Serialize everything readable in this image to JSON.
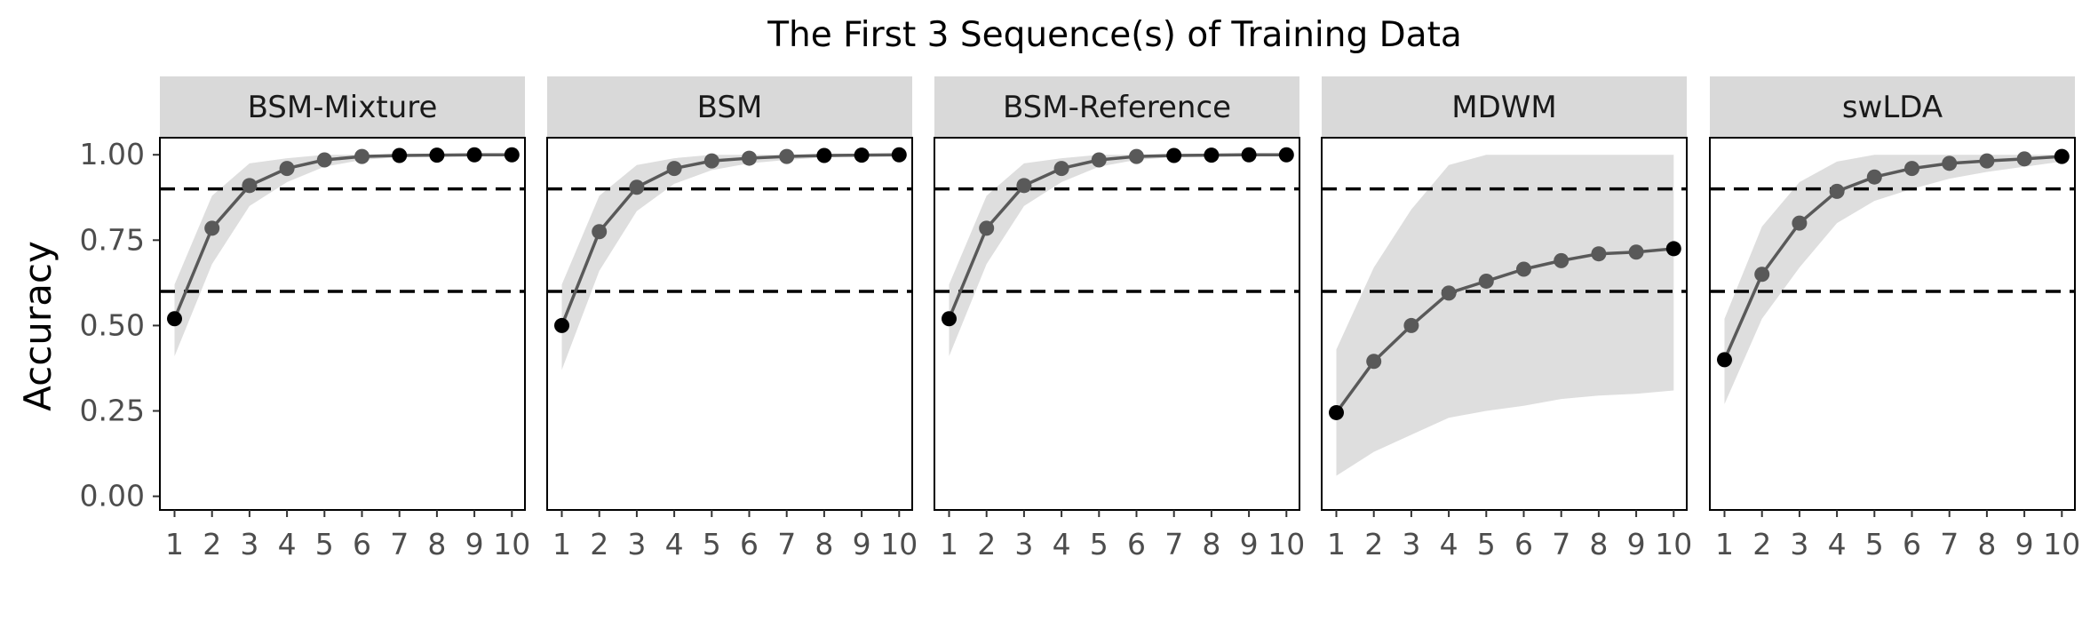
{
  "chart_data": {
    "type": "line",
    "title": "The First 3 Sequence(s) of Training Data",
    "xlabel": "",
    "ylabel": "Accuracy",
    "x": [
      1,
      2,
      3,
      4,
      5,
      6,
      7,
      8,
      9,
      10
    ],
    "x_tick_labels": [
      "1",
      "2",
      "3",
      "4",
      "5",
      "6",
      "7",
      "8",
      "9",
      "10"
    ],
    "y_ticks": [
      0.0,
      0.25,
      0.5,
      0.75,
      1.0
    ],
    "y_tick_labels": [
      "0.00",
      "0.25",
      "0.50",
      "0.75",
      "1.00"
    ],
    "ylim": [
      -0.04,
      1.05
    ],
    "xlim": [
      0.6,
      10.4
    ],
    "reference_lines": [
      0.6,
      0.9
    ],
    "grid": false,
    "panels": [
      {
        "name": "BSM-Mixture",
        "mean": [
          0.52,
          0.785,
          0.91,
          0.96,
          0.985,
          0.995,
          0.998,
          0.999,
          1.0,
          1.0
        ],
        "lower": [
          0.41,
          0.68,
          0.85,
          0.92,
          0.965,
          0.985,
          0.993,
          0.997,
          0.999,
          1.0
        ],
        "upper": [
          0.62,
          0.88,
          0.975,
          0.99,
          1.0,
          1.0,
          1.0,
          1.0,
          1.0,
          1.0
        ]
      },
      {
        "name": "BSM",
        "mean": [
          0.5,
          0.775,
          0.905,
          0.96,
          0.982,
          0.99,
          0.995,
          0.998,
          0.999,
          1.0
        ],
        "lower": [
          0.37,
          0.66,
          0.835,
          0.915,
          0.955,
          0.975,
          0.985,
          0.992,
          0.996,
          0.998
        ],
        "upper": [
          0.62,
          0.88,
          0.97,
          0.99,
          1.0,
          1.0,
          1.0,
          1.0,
          1.0,
          1.0
        ]
      },
      {
        "name": "BSM-Reference",
        "mean": [
          0.52,
          0.785,
          0.91,
          0.96,
          0.985,
          0.995,
          0.998,
          0.999,
          1.0,
          1.0
        ],
        "lower": [
          0.41,
          0.68,
          0.85,
          0.92,
          0.965,
          0.985,
          0.993,
          0.997,
          0.999,
          1.0
        ],
        "upper": [
          0.62,
          0.88,
          0.975,
          0.99,
          1.0,
          1.0,
          1.0,
          1.0,
          1.0,
          1.0
        ]
      },
      {
        "name": "MDWM",
        "mean": [
          0.245,
          0.395,
          0.5,
          0.595,
          0.63,
          0.665,
          0.69,
          0.71,
          0.715,
          0.725
        ],
        "lower": [
          0.06,
          0.13,
          0.18,
          0.23,
          0.25,
          0.265,
          0.285,
          0.295,
          0.3,
          0.31
        ],
        "upper": [
          0.43,
          0.67,
          0.84,
          0.97,
          1.0,
          1.0,
          1.0,
          1.0,
          1.0,
          1.0
        ]
      },
      {
        "name": "swLDA",
        "mean": [
          0.4,
          0.65,
          0.8,
          0.893,
          0.935,
          0.96,
          0.975,
          0.982,
          0.988,
          0.995
        ],
        "lower": [
          0.27,
          0.52,
          0.67,
          0.8,
          0.865,
          0.9,
          0.93,
          0.95,
          0.965,
          0.98
        ],
        "upper": [
          0.52,
          0.79,
          0.92,
          0.98,
          1.0,
          1.0,
          1.0,
          1.0,
          1.0,
          1.0
        ]
      }
    ]
  },
  "colors": {
    "line": "#595959",
    "point_dark": "#000000",
    "point_mid": "#595959",
    "ribbon": "#dedede",
    "strip_bg": "#d9d9d9",
    "panel_border": "#000000",
    "ref_line": "#000000"
  }
}
